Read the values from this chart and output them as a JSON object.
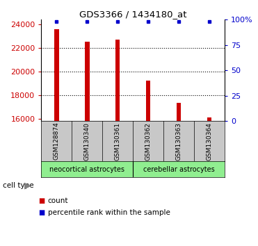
{
  "title": "GDS3366 / 1434180_at",
  "samples": [
    "GSM128874",
    "GSM130340",
    "GSM130361",
    "GSM130362",
    "GSM130363",
    "GSM130364"
  ],
  "counts": [
    23600,
    22500,
    22700,
    19200,
    17350,
    16100
  ],
  "percentiles": [
    98,
    98,
    98,
    98,
    98,
    98
  ],
  "ylim_left": [
    15800,
    24400
  ],
  "ylim_right": [
    0,
    100
  ],
  "yticks_left": [
    16000,
    18000,
    20000,
    22000,
    24000
  ],
  "yticks_right": [
    0,
    25,
    50,
    75,
    100
  ],
  "bar_color": "#cc0000",
  "marker_color": "#0000cc",
  "cell_types": [
    "neocortical astrocytes",
    "cerebellar astrocytes"
  ],
  "cell_type_color": "#90ee90",
  "bg_color": "#c8c8c8",
  "legend_count_label": "count",
  "legend_percentile_label": "percentile rank within the sample",
  "cell_type_label": "cell type",
  "grid_dotted_at": [
    18000,
    20000,
    22000
  ],
  "bar_width": 0.15
}
